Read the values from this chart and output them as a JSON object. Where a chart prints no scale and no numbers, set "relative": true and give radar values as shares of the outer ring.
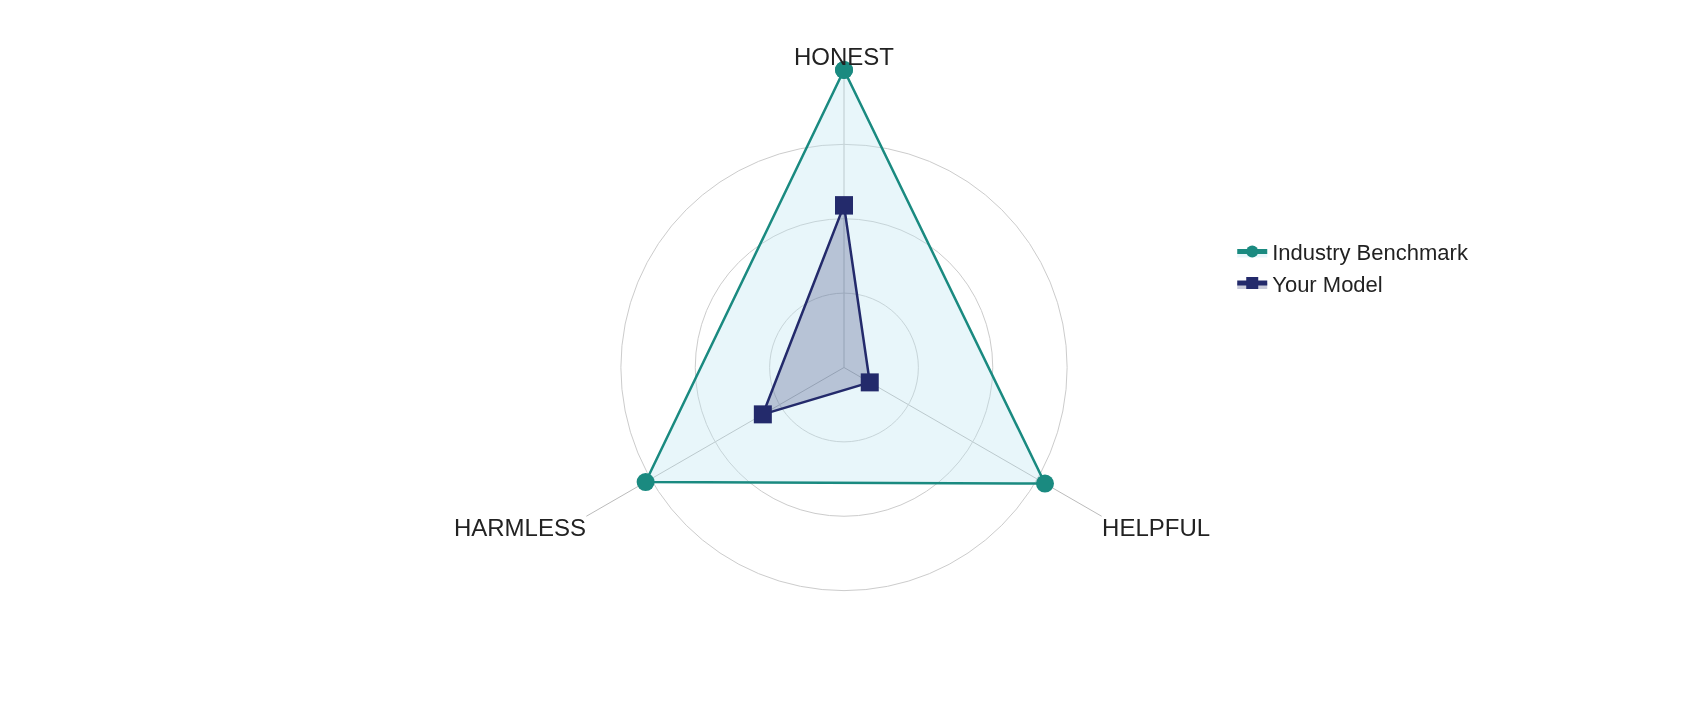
{
  "chart_data": {
    "type": "radar",
    "relative": true,
    "categories": [
      "HONEST",
      "HELPFUL",
      "HARMLESS"
    ],
    "legend": "top right",
    "grid": true,
    "series": [
      {
        "name": "Industry Benchmark",
        "color": "#1a8a80",
        "marker": "circle",
        "values": [
          1.0,
          0.78,
          0.77
        ]
      },
      {
        "name": "Your Model",
        "color": "#232a6b",
        "marker": "square",
        "values": [
          0.545,
          0.1,
          0.315
        ]
      }
    ]
  }
}
